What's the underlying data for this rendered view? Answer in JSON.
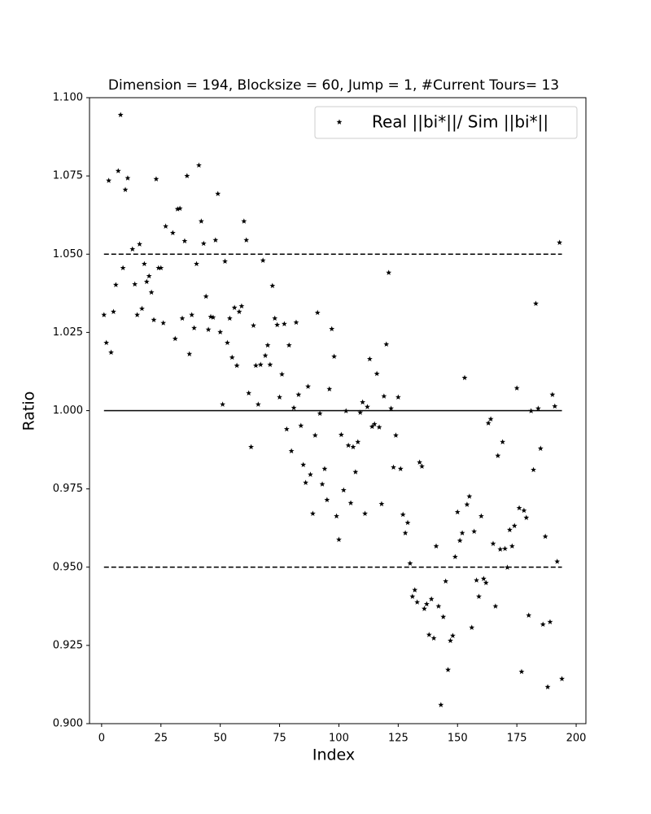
{
  "chart_data": {
    "type": "scatter",
    "title": "Dimension = 194, Blocksize = 60, Jump = 1, #Current Tours= 13",
    "xlabel": "Index",
    "ylabel": "Ratio",
    "legend": "upper right",
    "series": [
      {
        "name": "Real ||bi*||/ Sim ||bi*||",
        "color": "#000000",
        "x": [
          1,
          2,
          3,
          4,
          5,
          6,
          7,
          8,
          9,
          10,
          11,
          13,
          14,
          15,
          16,
          17,
          18,
          19,
          20,
          21,
          22,
          23,
          24,
          25,
          26,
          27,
          30,
          31,
          32,
          33,
          34,
          35,
          36,
          37,
          38,
          39,
          40,
          41,
          42,
          43,
          44,
          45,
          46,
          47,
          48,
          49,
          50,
          51,
          52,
          53,
          54,
          55,
          56,
          57,
          58,
          59,
          60,
          61,
          62,
          63,
          64,
          65,
          66,
          67,
          68,
          69,
          70,
          71,
          72,
          73,
          74,
          75,
          76,
          77,
          78,
          79,
          80,
          81,
          82,
          83,
          84,
          85,
          86,
          87,
          88,
          89,
          90,
          91,
          92,
          93,
          94,
          95,
          96,
          97,
          98,
          99,
          100,
          101,
          102,
          103,
          104,
          105,
          106,
          107,
          108,
          109,
          110,
          111,
          112,
          113,
          114,
          115,
          116,
          117,
          118,
          119,
          120,
          121,
          122,
          123,
          124,
          125,
          126,
          127,
          128,
          129,
          130,
          131,
          132,
          133,
          134,
          135,
          136,
          137,
          138,
          139,
          140,
          141,
          142,
          143,
          144,
          145,
          146,
          147,
          148,
          149,
          150,
          151,
          152,
          153,
          154,
          155,
          156,
          157,
          158,
          159,
          160,
          161,
          162,
          163,
          164,
          165,
          166,
          167,
          168,
          169,
          170,
          171,
          172,
          173,
          174,
          175,
          176,
          177,
          178,
          179,
          180,
          181,
          182,
          183,
          184,
          185,
          186,
          187,
          188,
          189,
          190,
          191,
          192,
          193,
          194
        ],
        "values": [
          1.0306,
          1.0217,
          1.0735,
          1.0186,
          1.0316,
          1.0402,
          1.0766,
          1.0945,
          1.0456,
          1.0706,
          1.0743,
          1.0516,
          1.0404,
          1.0306,
          1.0532,
          1.0326,
          1.0469,
          1.0412,
          1.043,
          1.0378,
          1.029,
          1.074,
          1.0456,
          1.0456,
          1.028,
          1.0589,
          1.0568,
          1.023,
          1.0644,
          1.0646,
          1.0295,
          1.0542,
          1.075,
          1.0181,
          1.0306,
          1.0264,
          1.0469,
          1.0784,
          1.0605,
          1.0534,
          1.0365,
          1.0259,
          1.03,
          1.0298,
          1.0545,
          1.0693,
          1.0251,
          1.002,
          1.0477,
          1.0217,
          1.0295,
          1.017,
          1.0329,
          1.0144,
          1.0316,
          1.0334,
          1.0605,
          1.0545,
          1.0056,
          0.9884,
          1.0272,
          1.0144,
          1.002,
          1.0147,
          1.048,
          1.0176,
          1.0209,
          1.0147,
          1.0399,
          1.0295,
          1.0274,
          1.0043,
          1.0116,
          1.0277,
          0.9941,
          1.0209,
          0.9871,
          1.0009,
          1.0282,
          1.0051,
          0.9952,
          0.9827,
          0.977,
          1.0077,
          0.9796,
          0.9671,
          0.9921,
          1.0313,
          0.9991,
          0.9765,
          0.9814,
          0.9715,
          1.0069,
          1.0261,
          1.0173,
          0.9663,
          0.9588,
          0.9923,
          0.9746,
          0.9999,
          0.9889,
          0.9705,
          0.9884,
          0.9804,
          0.99,
          0.9994,
          1.0027,
          0.9671,
          1.0012,
          1.0165,
          0.9949,
          0.9957,
          1.0118,
          0.9947,
          0.9702,
          1.0046,
          1.0212,
          1.0441,
          1.0007,
          0.9819,
          0.9921,
          1.0043,
          0.9814,
          0.9668,
          0.9609,
          0.9642,
          0.9512,
          0.9406,
          0.9427,
          0.9388,
          0.9835,
          0.9822,
          0.9367,
          0.9382,
          0.9284,
          0.9398,
          0.9273,
          0.9567,
          0.9375,
          0.906,
          0.9341,
          0.9455,
          0.9172,
          0.9265,
          0.9281,
          0.9533,
          0.9676,
          0.9585,
          0.9609,
          1.0105,
          0.97,
          0.9726,
          0.9307,
          0.9614,
          0.9458,
          0.9406,
          0.9663,
          0.9463,
          0.945,
          0.996,
          0.9973,
          0.9575,
          0.9375,
          0.9856,
          0.9557,
          0.99,
          0.9559,
          0.9499,
          0.9619,
          0.9567,
          0.9632,
          1.0072,
          0.9689,
          0.9166,
          0.9681,
          0.9658,
          0.9346,
          0.9999,
          0.9811,
          1.0342,
          1.0007,
          0.9879,
          0.9317,
          0.9598,
          0.9117,
          0.9325,
          1.0051,
          1.0014,
          0.9518,
          1.0537,
          0.9143
        ]
      }
    ],
    "reference_lines": [
      {
        "y": 1.05,
        "dashed": true
      },
      {
        "y": 1.0,
        "dashed": false
      },
      {
        "y": 0.95,
        "dashed": true
      }
    ],
    "reference_x": [
      1,
      194
    ],
    "xlim": [
      -5.1,
      204.1
    ],
    "ylim": [
      0.9,
      1.1
    ],
    "xticks": [
      0,
      25,
      50,
      75,
      100,
      125,
      150,
      175,
      200
    ],
    "yticks": [
      {
        "value": 0.9,
        "label": "0.900"
      },
      {
        "value": 0.925,
        "label": "0.925"
      },
      {
        "value": 0.95,
        "label": "0.950"
      },
      {
        "value": 0.975,
        "label": "0.975"
      },
      {
        "value": 1.0,
        "label": "1.000"
      },
      {
        "value": 1.025,
        "label": "1.025"
      },
      {
        "value": 1.05,
        "label": "1.050"
      },
      {
        "value": 1.075,
        "label": "1.075"
      },
      {
        "value": 1.1,
        "label": "1.100"
      }
    ],
    "grid": false
  }
}
